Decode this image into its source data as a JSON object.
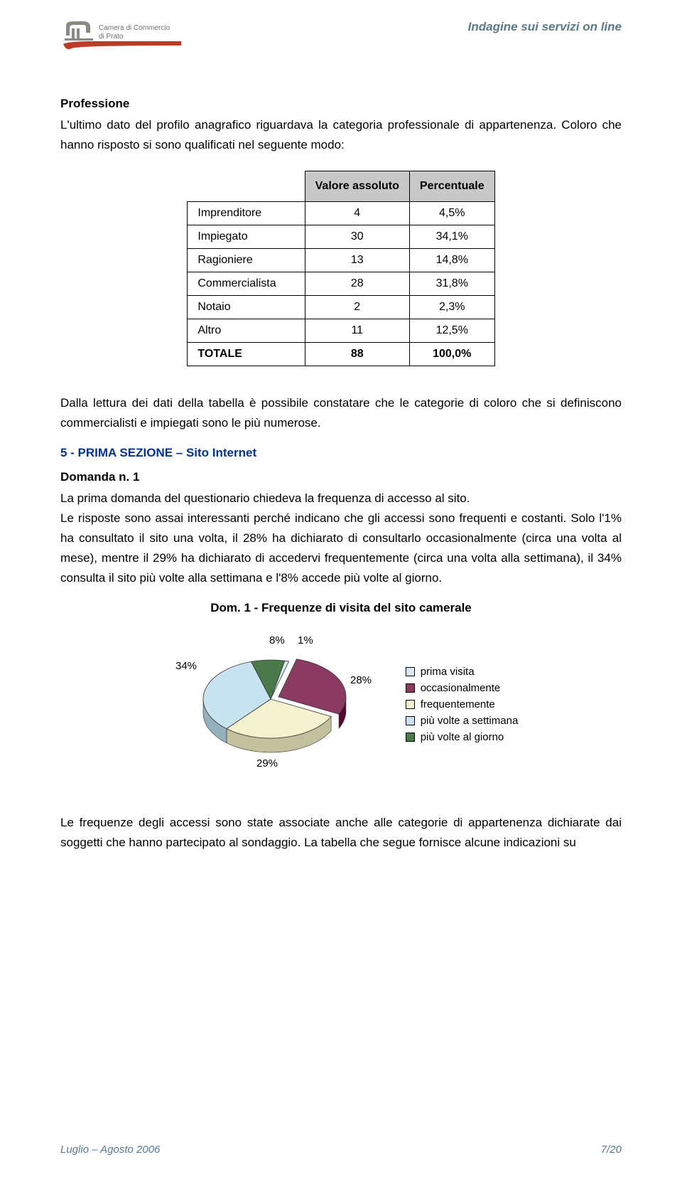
{
  "header": {
    "logo_line1": "Camera di Commercio",
    "logo_line2": "di Prato",
    "doc_title": "Indagine sui servizi on line"
  },
  "section": {
    "professione_label": "Professione",
    "intro1": "L'ultimo dato del profilo anagrafico riguardava la categoria professionale di appartenenza. Coloro che hanno risposto si sono qualificati nel seguente modo:"
  },
  "table": {
    "col_abs": "Valore assoluto",
    "col_pct": "Percentuale",
    "rows": [
      {
        "label": "Imprenditore",
        "abs": "4",
        "pct": "4,5%"
      },
      {
        "label": "Impiegato",
        "abs": "30",
        "pct": "34,1%"
      },
      {
        "label": "Ragioniere",
        "abs": "13",
        "pct": "14,8%"
      },
      {
        "label": "Commercialista",
        "abs": "28",
        "pct": "31,8%"
      },
      {
        "label": "Notaio",
        "abs": "2",
        "pct": "2,3%"
      },
      {
        "label": "Altro",
        "abs": "11",
        "pct": "12,5%"
      }
    ],
    "total": {
      "label": "TOTALE",
      "abs": "88",
      "pct": "100,0%"
    }
  },
  "body": {
    "p1": "Dalla lettura dei dati della tabella è possibile constatare che le categorie di coloro che si definiscono commercialisti e impiegati sono le più numerose.",
    "h_sezione": "5 - PRIMA SEZIONE – Sito Internet",
    "h_domanda": "Domanda n. 1",
    "p2": "La prima domanda del questionario chiedeva la frequenza di accesso al sito.",
    "p3": "Le risposte sono assai interessanti perché indicano che gli accessi sono frequenti e costanti. Solo l'1% ha consultato il sito una volta, il 28% ha dichiarato di consultarlo occasionalmente (circa una volta al mese), mentre il 29% ha dichiarato di accedervi frequentemente (circa una volta alla settimana), il 34% consulta il sito più volte alla settimana e l'8% accede più volte al giorno.",
    "chart_title": "Dom. 1 - Frequenze di visita del sito camerale",
    "p4": "Le frequenze degli accessi sono state associate anche alle categorie di appartenenza dichiarate dai soggetti che hanno partecipato al sondaggio. La tabella che segue fornisce alcune indicazioni su"
  },
  "pie": {
    "type": "pie",
    "slices": [
      {
        "label": "prima visita",
        "pct": 1,
        "pct_text": "1%",
        "color": "#dbe9f5"
      },
      {
        "label": "occasionalmente",
        "pct": 28,
        "pct_text": "28%",
        "color": "#8b3a62"
      },
      {
        "label": "frequentemente",
        "pct": 29,
        "pct_text": "29%",
        "color": "#f5f2d0"
      },
      {
        "label": "più volte a settimana",
        "pct": 34,
        "pct_text": "34%",
        "color": "#c8e3f0"
      },
      {
        "label": "più volte al giorno",
        "pct": 8,
        "pct_text": "8%",
        "color": "#4a7a4a"
      }
    ],
    "background_color": "#ffffff",
    "label_fontsize": 15,
    "exploded_index": 1,
    "start_angle_deg": -78
  },
  "footer": {
    "left": "Luglio – Agosto 2006",
    "right": "7/20"
  }
}
